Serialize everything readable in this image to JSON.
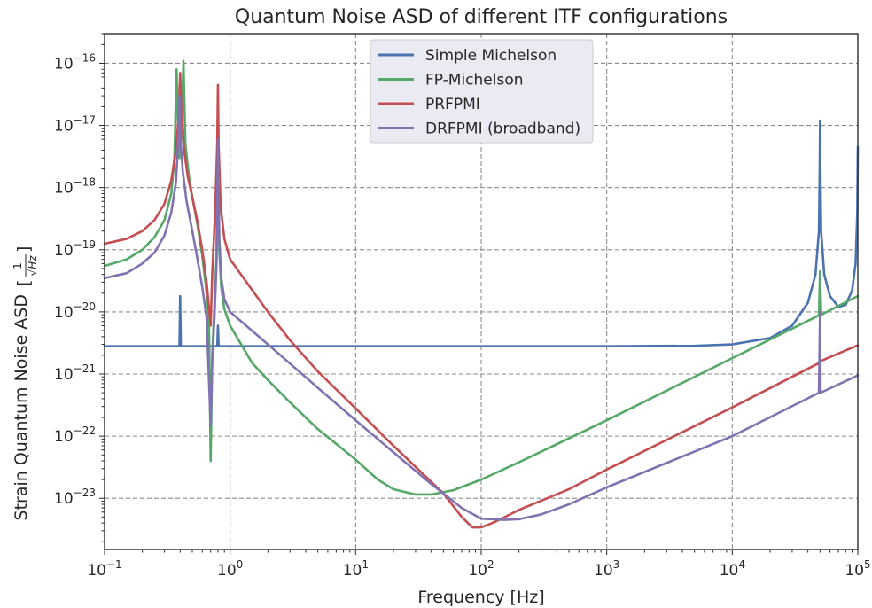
{
  "chart_data": {
    "type": "line",
    "title": "Quantum Noise ASD of different ITF configurations",
    "xlabel": "Frequency [Hz]",
    "ylabel": "Strain Quantum Noise ASD",
    "ylabel_unit_num": "1",
    "ylabel_unit_den": "√Hz",
    "xscale": "log",
    "yscale": "log",
    "xlim": [
      0.1,
      100000
    ],
    "ylim": [
      1.5e-24,
      3e-16
    ],
    "grid": true,
    "legend_position": "top-center",
    "x_ticks": [
      {
        "base": "10",
        "exp": "−1",
        "value": 0.1
      },
      {
        "base": "10",
        "exp": "0",
        "value": 1
      },
      {
        "base": "10",
        "exp": "1",
        "value": 10
      },
      {
        "base": "10",
        "exp": "2",
        "value": 100
      },
      {
        "base": "10",
        "exp": "3",
        "value": 1000
      },
      {
        "base": "10",
        "exp": "4",
        "value": 10000
      },
      {
        "base": "10",
        "exp": "5",
        "value": 100000
      }
    ],
    "y_ticks": [
      {
        "base": "10",
        "exp": "−23",
        "value": 1e-23
      },
      {
        "base": "10",
        "exp": "−22",
        "value": 1e-22
      },
      {
        "base": "10",
        "exp": "−21",
        "value": 1e-21
      },
      {
        "base": "10",
        "exp": "−20",
        "value": 1e-20
      },
      {
        "base": "10",
        "exp": "−19",
        "value": 1e-19
      },
      {
        "base": "10",
        "exp": "−18",
        "value": 1e-18
      },
      {
        "base": "10",
        "exp": "−17",
        "value": 1e-17
      },
      {
        "base": "10",
        "exp": "−16",
        "value": 1e-16
      }
    ],
    "series": [
      {
        "name": "Simple Michelson",
        "color": "#4c72b0",
        "points": [
          [
            0.1,
            2.8e-21
          ],
          [
            0.395,
            2.8e-21
          ],
          [
            0.4,
            1.8e-20
          ],
          [
            0.405,
            2.8e-21
          ],
          [
            0.79,
            2.8e-21
          ],
          [
            0.8,
            6e-21
          ],
          [
            0.81,
            2.8e-21
          ],
          [
            1,
            2.8e-21
          ],
          [
            10,
            2.8e-21
          ],
          [
            100,
            2.8e-21
          ],
          [
            1000,
            2.8e-21
          ],
          [
            5000,
            2.85e-21
          ],
          [
            10000,
            3e-21
          ],
          [
            20000,
            3.8e-21
          ],
          [
            30000,
            6e-21
          ],
          [
            40000,
            1.4e-20
          ],
          [
            46000,
            4e-20
          ],
          [
            49000,
            2e-19
          ],
          [
            49700,
            2e-18
          ],
          [
            50000,
            1.2e-17
          ],
          [
            50300,
            2e-18
          ],
          [
            51000,
            2e-19
          ],
          [
            54000,
            4e-20
          ],
          [
            60000,
            1.8e-20
          ],
          [
            70000,
            1.2e-20
          ],
          [
            80000,
            1.3e-20
          ],
          [
            90000,
            2.2e-20
          ],
          [
            96000,
            6e-20
          ],
          [
            99000,
            4e-19
          ],
          [
            100000,
            4.5e-18
          ]
        ]
      },
      {
        "name": "FP-Michelson",
        "color": "#55a868",
        "points": [
          [
            0.1,
            5.5e-20
          ],
          [
            0.15,
            7e-20
          ],
          [
            0.2,
            1e-19
          ],
          [
            0.25,
            1.6e-19
          ],
          [
            0.3,
            3e-19
          ],
          [
            0.34,
            8e-19
          ],
          [
            0.36,
            3e-18
          ],
          [
            0.375,
            8e-17
          ],
          [
            0.385,
            1e-17
          ],
          [
            0.395,
            3e-18
          ],
          [
            0.41,
            8e-18
          ],
          [
            0.425,
            1.1e-16
          ],
          [
            0.44,
            5e-18
          ],
          [
            0.47,
            1.5e-18
          ],
          [
            0.5,
            7e-19
          ],
          [
            0.55,
            2.5e-19
          ],
          [
            0.6,
            8e-20
          ],
          [
            0.65,
            2e-20
          ],
          [
            0.68,
            5e-21
          ],
          [
            0.7,
            4e-23
          ],
          [
            0.72,
            2e-21
          ],
          [
            0.75,
            1.2e-20
          ],
          [
            0.78,
            8e-20
          ],
          [
            0.8,
            2.2e-17
          ],
          [
            0.82,
            1e-19
          ],
          [
            0.85,
            2.5e-20
          ],
          [
            0.9,
            1.1e-20
          ],
          [
            1,
            6e-21
          ],
          [
            1.5,
            1.5e-21
          ],
          [
            2,
            8e-22
          ],
          [
            3,
            3.5e-22
          ],
          [
            5,
            1.3e-22
          ],
          [
            10,
            4.2e-23
          ],
          [
            15,
            2e-23
          ],
          [
            20,
            1.4e-23
          ],
          [
            30,
            1.15e-23
          ],
          [
            40,
            1.15e-23
          ],
          [
            60,
            1.35e-23
          ],
          [
            100,
            2e-23
          ],
          [
            200,
            3.8e-23
          ],
          [
            1000,
            1.8e-22
          ],
          [
            10000,
            1.8e-21
          ],
          [
            49000,
            8.8e-21
          ],
          [
            50000,
            4.5e-20
          ],
          [
            51000,
            9e-21
          ],
          [
            100000,
            1.8e-20
          ]
        ]
      },
      {
        "name": "PRFPMI",
        "color": "#c44e52",
        "points": [
          [
            0.1,
            1.25e-19
          ],
          [
            0.15,
            1.5e-19
          ],
          [
            0.2,
            2e-19
          ],
          [
            0.25,
            3e-19
          ],
          [
            0.3,
            5.5e-19
          ],
          [
            0.34,
            1.3e-18
          ],
          [
            0.37,
            4e-18
          ],
          [
            0.39,
            1.5e-17
          ],
          [
            0.4,
            7e-17
          ],
          [
            0.41,
            1.5e-17
          ],
          [
            0.43,
            4e-18
          ],
          [
            0.46,
            1.5e-18
          ],
          [
            0.5,
            7e-19
          ],
          [
            0.55,
            2.8e-19
          ],
          [
            0.6,
            1e-19
          ],
          [
            0.65,
            3e-20
          ],
          [
            0.7,
            6e-21
          ],
          [
            0.72,
            4e-20
          ],
          [
            0.76,
            4e-19
          ],
          [
            0.79,
            5e-18
          ],
          [
            0.8,
            4.5e-17
          ],
          [
            0.81,
            5e-18
          ],
          [
            0.84,
            5e-19
          ],
          [
            0.9,
            1.5e-19
          ],
          [
            1,
            7e-20
          ],
          [
            2,
            1e-20
          ],
          [
            3,
            3.5e-21
          ],
          [
            5,
            1.1e-21
          ],
          [
            10,
            2.8e-22
          ],
          [
            20,
            7e-23
          ],
          [
            30,
            3.2e-23
          ],
          [
            50,
            1.2e-23
          ],
          [
            70,
            5e-24
          ],
          [
            85,
            3.4e-24
          ],
          [
            100,
            3.4e-24
          ],
          [
            130,
            4.2e-24
          ],
          [
            200,
            6.5e-24
          ],
          [
            500,
            1.4e-23
          ],
          [
            1000,
            2.9e-23
          ],
          [
            10000,
            2.9e-22
          ],
          [
            49000,
            1.5e-21
          ],
          [
            50000,
            1.6e-21
          ],
          [
            100000,
            2.9e-21
          ]
        ]
      },
      {
        "name": "DRFPMI (broadband)",
        "color": "#8172b2",
        "points": [
          [
            0.1,
            3.5e-20
          ],
          [
            0.15,
            4.2e-20
          ],
          [
            0.2,
            6e-20
          ],
          [
            0.25,
            9e-20
          ],
          [
            0.3,
            1.7e-19
          ],
          [
            0.34,
            4e-19
          ],
          [
            0.37,
            1.2e-18
          ],
          [
            0.385,
            5e-18
          ],
          [
            0.395,
            3e-17
          ],
          [
            0.405,
            5e-18
          ],
          [
            0.42,
            1.8e-18
          ],
          [
            0.45,
            6e-19
          ],
          [
            0.5,
            2e-19
          ],
          [
            0.55,
            7e-20
          ],
          [
            0.6,
            2.5e-20
          ],
          [
            0.65,
            8e-21
          ],
          [
            0.7,
            1.5e-22
          ],
          [
            0.72,
            1.5e-21
          ],
          [
            0.75,
            8e-21
          ],
          [
            0.78,
            6e-20
          ],
          [
            0.8,
            6e-18
          ],
          [
            0.82,
            1.5e-19
          ],
          [
            0.85,
            3.5e-20
          ],
          [
            0.9,
            1.6e-20
          ],
          [
            1,
            1e-20
          ],
          [
            2,
            3e-21
          ],
          [
            5,
            6e-22
          ],
          [
            10,
            1.8e-22
          ],
          [
            20,
            5.5e-23
          ],
          [
            40,
            1.7e-23
          ],
          [
            70,
            7e-24
          ],
          [
            100,
            4.7e-24
          ],
          [
            150,
            4.5e-24
          ],
          [
            200,
            4.6e-24
          ],
          [
            300,
            5.5e-24
          ],
          [
            500,
            8e-24
          ],
          [
            1000,
            1.5e-23
          ],
          [
            10000,
            1e-22
          ],
          [
            49000,
            5e-22
          ],
          [
            50000,
            1e-20
          ],
          [
            50500,
            5e-22
          ],
          [
            100000,
            9.5e-22
          ]
        ]
      }
    ]
  }
}
